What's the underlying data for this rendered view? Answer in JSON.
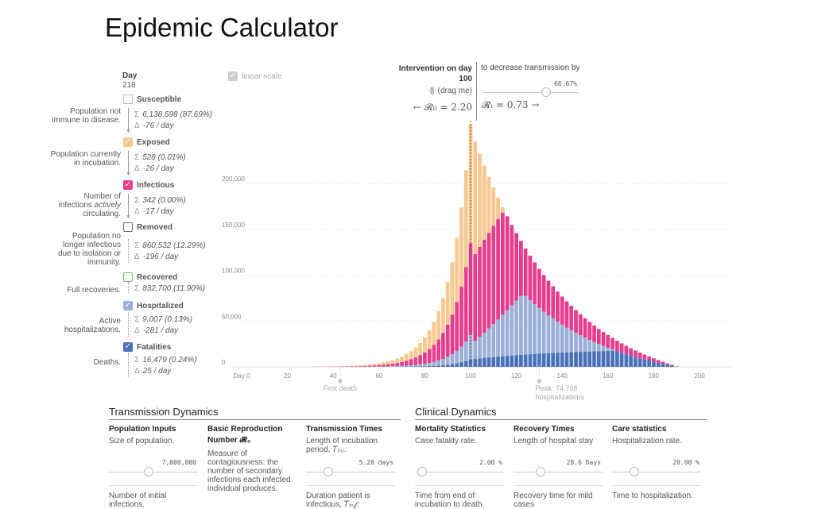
{
  "title": "Epidemic Calculator",
  "day": {
    "label": "Day",
    "value": "218"
  },
  "compartments": [
    {
      "key": "susceptible",
      "label": "Susceptible",
      "checked": false,
      "color": "#bbbbbb",
      "desc": "Population not immune to disease.",
      "sum": "6,138,598 (87.69%)",
      "delta": "-76 / day"
    },
    {
      "key": "exposed",
      "label": "Exposed",
      "checked": true,
      "color": "#f7c890",
      "desc": "Population currently in incubation.",
      "sum": "528 (0.01%)",
      "delta": "-26 / day"
    },
    {
      "key": "infectious",
      "label": "Infectious",
      "checked": true,
      "color": "#e63d8d",
      "desc_pre": "Number of infections ",
      "desc_em": "actively",
      "desc_post": " circulating.",
      "sum": "342 (0.00%)",
      "delta": "-17 / day"
    },
    {
      "key": "removed",
      "label": "Removed",
      "checked": false,
      "color": "#666666",
      "desc": "Population no longer infectious due to isolation or immunity.",
      "sum": "860,532 (12.29%)",
      "delta": "-196 / day"
    },
    {
      "key": "recovered",
      "label": "Recovered",
      "checked": false,
      "color": "#6cbf6c",
      "desc": "Full recoveries.",
      "sum": "832,700 (11.90%)"
    },
    {
      "key": "hospitalized",
      "label": "Hospitalized",
      "checked": true,
      "color": "#9ab0d8",
      "desc": "Active hospitalizations.",
      "sum": "9,007 (0.13%)",
      "delta": "-281 / day"
    },
    {
      "key": "fatalities",
      "label": "Fatalities",
      "checked": true,
      "color": "#4b72b8",
      "desc": "Deaths.",
      "sum": "16,479 (0.24%)",
      "delta": "25 / day"
    }
  ],
  "symbols": {
    "sum": "Σ",
    "delta": "Δ",
    "check": "✓"
  },
  "linear_scale": "linear scale",
  "intervention": {
    "title": "Intervention on day",
    "day": "100",
    "drag": "(drag me)",
    "r0_text": "← 𝓡₀ = 2.20",
    "rt_text": "𝓡ₜ = 0.73 →",
    "decrease": "to decrease transmission by",
    "percent": "66.67%",
    "percent_value": 0.667
  },
  "chart_data": {
    "type": "bar",
    "stacked": true,
    "x_range": [
      0,
      218
    ],
    "ylim": [
      0,
      260000
    ],
    "y_ticks": [
      "0",
      "50,000",
      "100,000",
      "150,000",
      "200,000"
    ],
    "y_tick_values": [
      0,
      50000,
      100000,
      150000,
      200000
    ],
    "x_ticks": [
      "Day 0",
      "20",
      "40",
      "60",
      "80",
      "100",
      "120",
      "140",
      "160",
      "180",
      "200"
    ],
    "x_tick_values": [
      0,
      20,
      40,
      60,
      80,
      100,
      120,
      140,
      160,
      180,
      200
    ],
    "peak_day": 100,
    "series": [
      {
        "name": "Fatalities",
        "color": "#4b72b8"
      },
      {
        "name": "Hospitalized",
        "color": "#9ab0d8"
      },
      {
        "name": "Infectious",
        "color": "#e63d8d"
      },
      {
        "name": "Exposed",
        "color": "#f7c890"
      }
    ],
    "annotations": {
      "first_death": {
        "label": "First death",
        "day": 43
      },
      "peak": {
        "label": "Peak: 74,738 hospitalizations",
        "day": 130
      }
    }
  },
  "transmission": {
    "heading": "Transmission Dynamics",
    "cols": [
      {
        "title": "Population Inputs",
        "text": "Size of population.",
        "value": "7,000,000",
        "knob": 0.45,
        "text2": "Number of initial infections."
      },
      {
        "title": "Basic Reproduction Number 𝓡₀",
        "text": "Measure of contagiousness: the number of secondary infections each infected individual produces."
      },
      {
        "title": "Transmission Times",
        "text": "Length of incubation period, 𝑇ᵢₙ꜀.",
        "value": "5.20 days",
        "knob": 0.25,
        "text2": "Duration patient is infectious, 𝑇ᵢₙ𝒻."
      }
    ]
  },
  "clinical": {
    "heading": "Clinical Dynamics",
    "cols": [
      {
        "title": "Mortality Statistics",
        "text": "Case fatality rate.",
        "value": "2.00 %",
        "knob": 0.08,
        "text2": "Time from end of incubation to death."
      },
      {
        "title": "Recovery Times",
        "text": "Length of hospital stay",
        "value": "28.6 Days",
        "knob": 0.3,
        "text2": "Recovery time for mild cases"
      },
      {
        "title": "Care statistics",
        "text": "Hospitalization rate.",
        "value": "20.00 %",
        "knob": 0.25,
        "text2": "Time to hospitalization."
      }
    ]
  }
}
